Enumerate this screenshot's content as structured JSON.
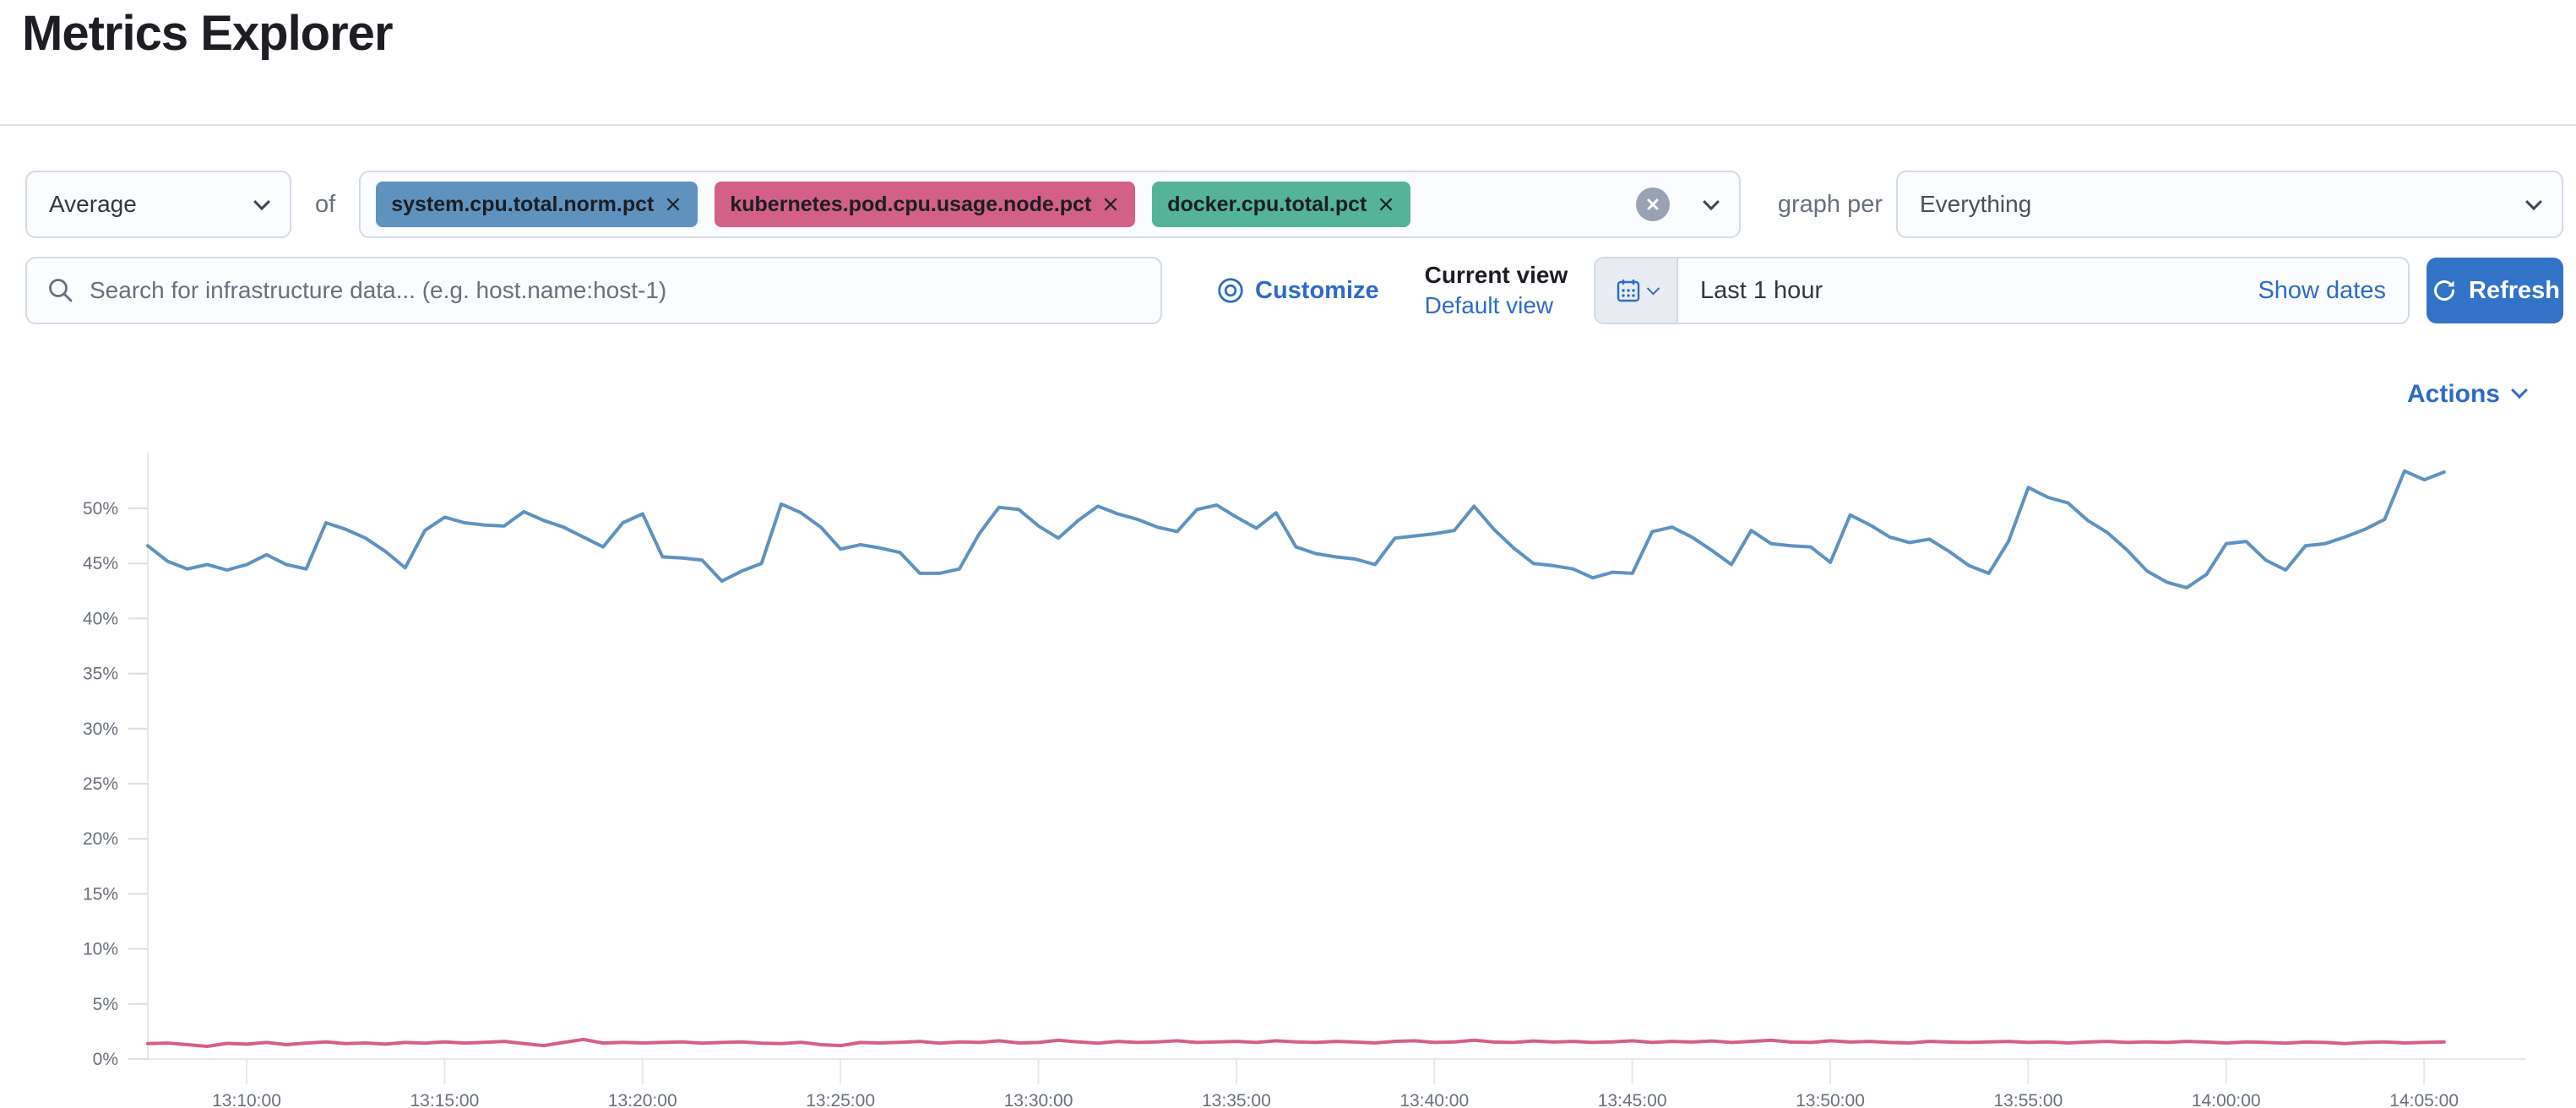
{
  "page": {
    "title": "Metrics Explorer"
  },
  "toolbar": {
    "aggregation_value": "Average",
    "of_label": "of",
    "metrics": [
      {
        "label": "system.cpu.total.norm.pct",
        "color": "#6092C0"
      },
      {
        "label": "kubernetes.pod.cpu.usage.node.pct",
        "color": "#D36086"
      },
      {
        "label": "docker.cpu.total.pct",
        "color": "#54B399"
      }
    ],
    "graph_per_label": "graph per",
    "group_by_value": "Everything"
  },
  "search": {
    "placeholder": "Search for infrastructure data... (e.g. host.name:host-1)"
  },
  "view_controls": {
    "customize_label": "Customize",
    "current_view_label": "Current view",
    "default_view_label": "Default view"
  },
  "time_controls": {
    "range_label": "Last 1 hour",
    "show_dates_label": "Show dates",
    "refresh_label": "Refresh"
  },
  "actions_label": "Actions",
  "colors": {
    "link_blue": "#2E6BC8",
    "button_blue": "#3273C8",
    "field_border": "#D3DAE6",
    "field_bg": "#FBFCFD",
    "text_dark": "#343741",
    "text_muted": "#69707D",
    "series_blue": "#6092C0",
    "series_pink": "#D36086",
    "tag_green": "#54B399"
  },
  "chart_data": {
    "type": "line",
    "title": "",
    "xlabel": "",
    "ylabel": "",
    "x_start": "13:07:30",
    "x_interval_seconds": 30,
    "x_ticks": [
      "13:10:00",
      "13:15:00",
      "13:20:00",
      "13:25:00",
      "13:30:00",
      "13:35:00",
      "13:40:00",
      "13:45:00",
      "13:50:00",
      "13:55:00",
      "14:00:00",
      "14:05:00"
    ],
    "y_ticks": [
      "0%",
      "5%",
      "10%",
      "15%",
      "20%",
      "25%",
      "30%",
      "35%",
      "40%",
      "45%",
      "50%"
    ],
    "ylim": [
      0,
      55
    ],
    "grid": "off",
    "legend": "none",
    "series": [
      {
        "name": "system.cpu.total.norm.pct",
        "color": "#6092C0",
        "values": [
          46.6,
          45.2,
          44.5,
          44.9,
          44.4,
          44.9,
          45.8,
          44.9,
          44.5,
          48.7,
          48.1,
          47.3,
          46.1,
          44.6,
          48.0,
          49.2,
          48.7,
          48.5,
          48.4,
          49.7,
          48.9,
          48.3,
          47.4,
          46.5,
          48.7,
          49.5,
          45.6,
          45.5,
          45.3,
          43.4,
          44.3,
          45.0,
          50.4,
          49.6,
          48.3,
          46.3,
          46.7,
          46.4,
          46.0,
          44.1,
          44.1,
          44.5,
          47.7,
          50.1,
          49.9,
          48.4,
          47.3,
          48.9,
          50.2,
          49.5,
          49.0,
          48.3,
          47.9,
          49.9,
          50.3,
          49.2,
          48.2,
          49.6,
          46.5,
          45.9,
          45.6,
          45.4,
          44.9,
          47.3,
          47.5,
          47.7,
          48.0,
          50.2,
          48.1,
          46.4,
          45.0,
          44.8,
          44.5,
          43.7,
          44.2,
          44.1,
          47.9,
          48.3,
          47.4,
          46.2,
          44.9,
          48.0,
          46.8,
          46.6,
          46.5,
          45.1,
          49.4,
          48.5,
          47.4,
          46.9,
          47.2,
          46.1,
          44.8,
          44.1,
          47.0,
          51.9,
          51.0,
          50.5,
          48.9,
          47.8,
          46.2,
          44.3,
          43.3,
          42.8,
          44.0,
          46.8,
          47.0,
          45.3,
          44.4,
          46.6,
          46.8,
          47.4,
          48.1,
          49.0,
          53.4,
          52.6,
          53.3
        ]
      },
      {
        "name": "kubernetes.pod.cpu.usage.node.pct",
        "color": "#D36086",
        "values": [
          1.4,
          1.45,
          1.3,
          1.15,
          1.42,
          1.35,
          1.5,
          1.3,
          1.45,
          1.55,
          1.4,
          1.46,
          1.35,
          1.5,
          1.44,
          1.56,
          1.45,
          1.52,
          1.6,
          1.4,
          1.22,
          1.5,
          1.78,
          1.45,
          1.52,
          1.46,
          1.5,
          1.55,
          1.44,
          1.5,
          1.56,
          1.44,
          1.4,
          1.52,
          1.3,
          1.22,
          1.5,
          1.46,
          1.52,
          1.6,
          1.44,
          1.56,
          1.5,
          1.66,
          1.46,
          1.5,
          1.7,
          1.55,
          1.44,
          1.6,
          1.5,
          1.56,
          1.66,
          1.5,
          1.56,
          1.6,
          1.5,
          1.66,
          1.55,
          1.5,
          1.6,
          1.54,
          1.46,
          1.6,
          1.66,
          1.5,
          1.56,
          1.7,
          1.54,
          1.5,
          1.64,
          1.54,
          1.6,
          1.5,
          1.56,
          1.66,
          1.5,
          1.6,
          1.54,
          1.64,
          1.5,
          1.6,
          1.7,
          1.54,
          1.5,
          1.66,
          1.54,
          1.6,
          1.5,
          1.46,
          1.6,
          1.54,
          1.5,
          1.56,
          1.6,
          1.5,
          1.56,
          1.46,
          1.54,
          1.6,
          1.5,
          1.56,
          1.5,
          1.6,
          1.54,
          1.46,
          1.56,
          1.5,
          1.44,
          1.54,
          1.5,
          1.4,
          1.5,
          1.56,
          1.46,
          1.5,
          1.55
        ]
      }
    ]
  }
}
